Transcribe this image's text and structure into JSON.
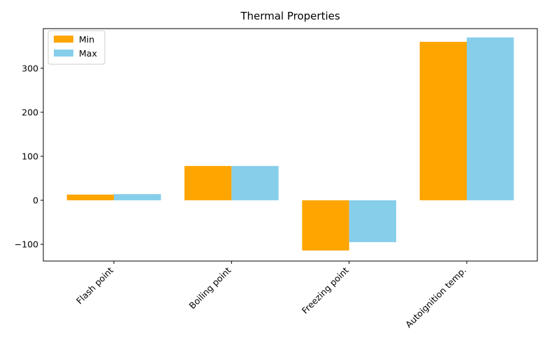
{
  "chart_data": {
    "type": "bar",
    "title": "Thermal Properties",
    "xlabel": "",
    "ylabel": "",
    "categories": [
      "Flash point",
      "Boiling point",
      "Freezing point",
      "Autoignition temp."
    ],
    "series": [
      {
        "name": "Min",
        "values": [
          13,
          78,
          -114,
          360
        ],
        "color": "#FFA500"
      },
      {
        "name": "Max",
        "values": [
          14,
          78,
          -95,
          370
        ],
        "color": "#87CEEB"
      }
    ],
    "ylim": [
      -138,
      390
    ],
    "yticks": [
      -100,
      0,
      100,
      200,
      300
    ],
    "ytick_labels": [
      "−100",
      "0",
      "100",
      "200",
      "300"
    ],
    "grid": false,
    "legend_position": "top-left"
  }
}
